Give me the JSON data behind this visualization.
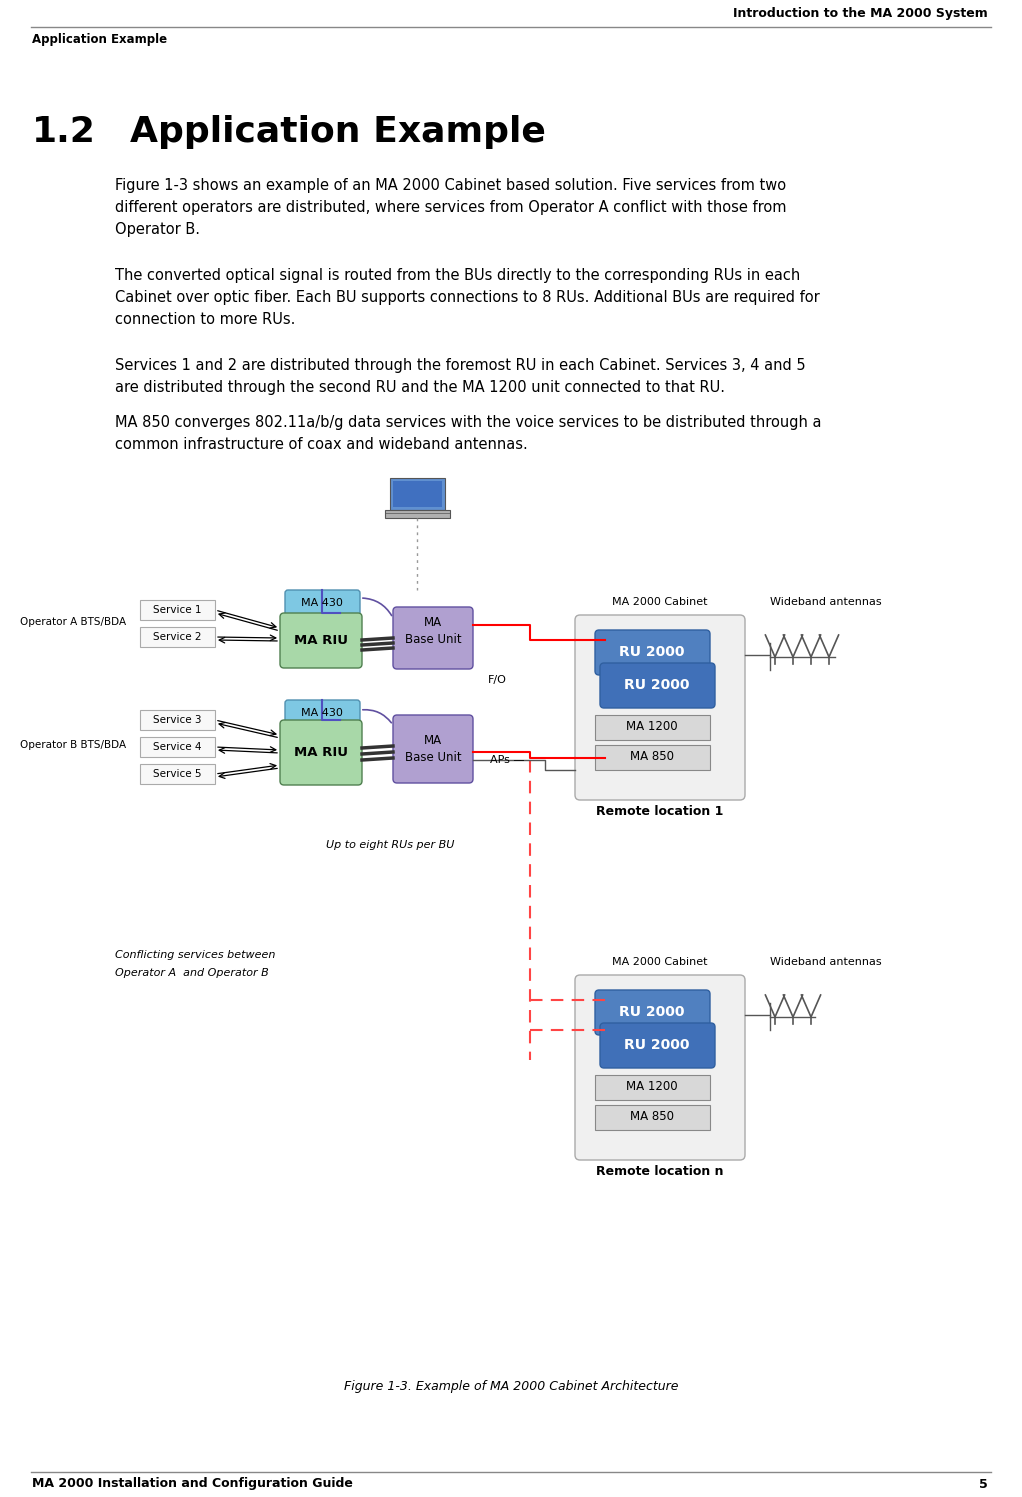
{
  "header_right": "Introduction to the MA 2000 System",
  "header_left_bold": "Application Example",
  "footer_left_bold": "MA 2000 Installation and Configuration Guide",
  "footer_right_bold": "5",
  "section_number": "1.2",
  "section_title": "Application Example",
  "para1": "Figure 1-3 shows an example of an MA 2000 Cabinet based solution. Five services from two\ndifferent operators are distributed, where services from Operator A conflict with those from\nOperator B.",
  "para2": "The converted optical signal is routed from the BUs directly to the corresponding RUs in each\nCabinet over optic fiber. Each BU supports connections to 8 RUs. Additional BUs are required for\nconnection to more RUs.",
  "para3": "Services 1 and 2 are distributed through the foremost RU in each Cabinet. Services 3, 4 and 5\nare distributed through the second RU and the MA 1200 unit connected to that RU.",
  "para4": "MA 850 converges 802.11a/b/g data services with the voice services to be distributed through a\ncommon infrastructure of coax and wideband antennas.",
  "figure_caption": "Figure 1-3. Example of MA 2000 Cabinet Architecture",
  "bg_color": "#ffffff",
  "header_line_color": "#888888",
  "footer_line_color": "#888888",
  "text_color": "#000000",
  "box_cyan_ma430": "#7ec8e3",
  "box_green_mariu": "#a8d8a8",
  "box_purple_mabu": "#b0a0d0",
  "box_blue_ru2000": "#5080c0",
  "box_gray_cabinet": "#c8c8c8",
  "box_lightgray": "#d8d8d8",
  "box_white": "#f8f8f8",
  "arrow_color": "#000000",
  "fiber_red": "#ff0000",
  "fiber_dashed": "#ff4444",
  "cabinet_border": "#888888"
}
